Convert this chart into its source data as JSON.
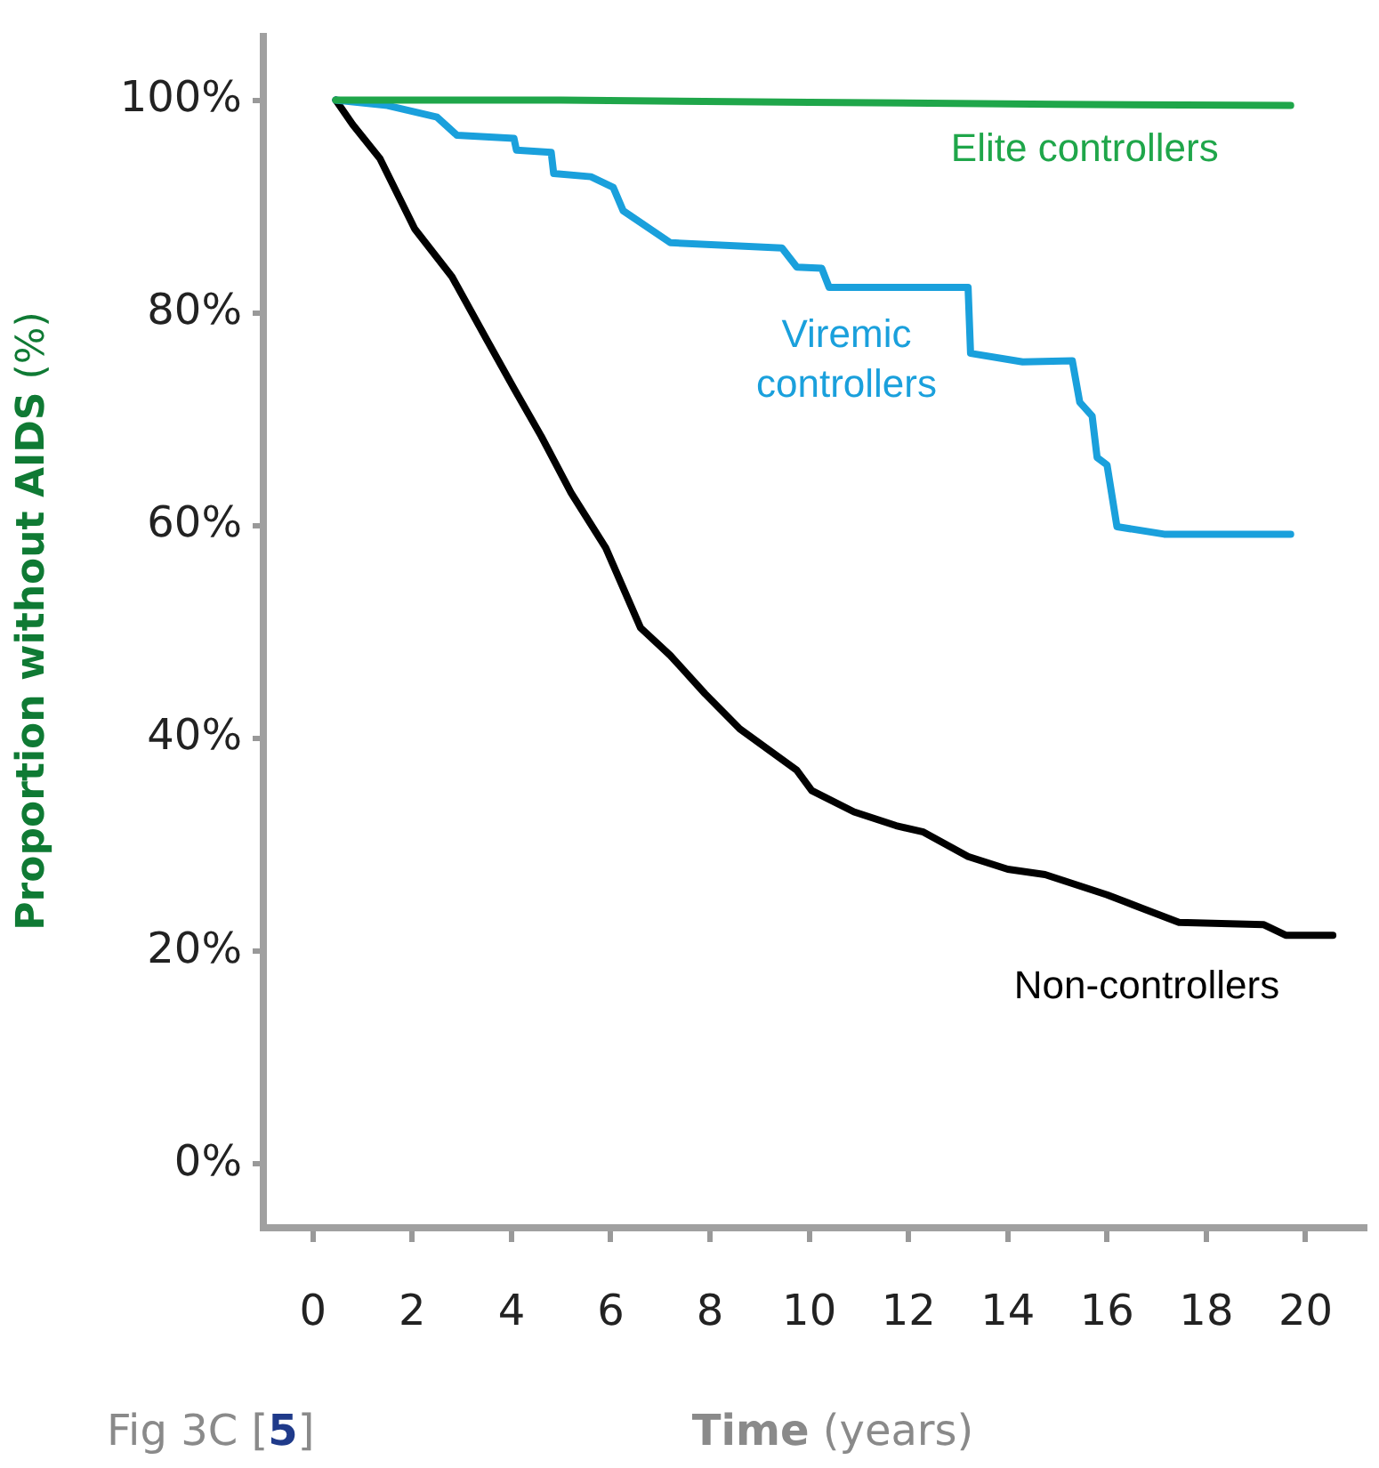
{
  "chart_data": {
    "type": "line",
    "xlabel": "Time (years)",
    "ylabel": "Proportion without AIDS (%)",
    "annotations": [
      "Fig 3C [5]"
    ],
    "xlim": [
      -1,
      21.2
    ],
    "ylim": [
      -6,
      106
    ],
    "xticks": [
      0,
      2,
      4,
      6,
      8,
      10,
      12,
      14,
      16,
      18,
      20
    ],
    "yticks": [
      {
        "value": 0,
        "label": "0%"
      },
      {
        "value": 20,
        "label": "20%"
      },
      {
        "value": 40,
        "label": "40%"
      },
      {
        "value": 60,
        "label": "60%"
      },
      {
        "value": 80,
        "label": "80%"
      },
      {
        "value": 100,
        "label": "100%"
      }
    ],
    "grid": false,
    "legend": false,
    "marker": "none",
    "line_style": "solid",
    "series": [
      {
        "name": "Elite controllers",
        "color": "#1fa64a",
        "x": [
          0.46,
          5,
          10,
          15,
          19.7
        ],
        "values": [
          100,
          100,
          99.8,
          99.6,
          99.5
        ]
      },
      {
        "name": "Viremic controllers",
        "color": "#1aa0dc",
        "x": [
          0.46,
          1.5,
          2.5,
          2.9,
          4.05,
          4.1,
          4.8,
          4.85,
          5.6,
          6.05,
          6.25,
          7.2,
          9.45,
          9.75,
          10.25,
          10.4,
          13.2,
          13.25,
          14.3,
          15.3,
          15.45,
          15.7,
          15.8,
          16.0,
          16.2,
          17.15,
          19.7
        ],
        "values": [
          100,
          99.5,
          98.4,
          96.7,
          96.4,
          95.3,
          95.1,
          93.1,
          92.8,
          91.8,
          89.6,
          86.6,
          86.1,
          84.3,
          84.2,
          82.4,
          82.4,
          76.2,
          75.4,
          75.5,
          71.6,
          70.3,
          66.4,
          65.7,
          59.9,
          59.2,
          59.2
        ]
      },
      {
        "name": "Non-controllers",
        "color": "#000000",
        "x": [
          0.46,
          0.8,
          1.35,
          2.05,
          2.8,
          3.5,
          4.05,
          4.6,
          5.2,
          5.9,
          6.6,
          7.2,
          7.9,
          8.6,
          9.75,
          10.05,
          10.9,
          11.75,
          12.3,
          13.2,
          14.0,
          14.75,
          16.0,
          17.45,
          19.15,
          19.6,
          20.55
        ],
        "values": [
          100,
          97.7,
          94.5,
          87.9,
          83.4,
          77.5,
          72.9,
          68.4,
          63.1,
          57.9,
          50.4,
          47.8,
          44.2,
          40.9,
          37.0,
          35.1,
          33.1,
          31.8,
          31.2,
          28.9,
          27.7,
          27.2,
          25.3,
          22.7,
          22.5,
          21.5,
          21.5
        ]
      }
    ]
  }
}
